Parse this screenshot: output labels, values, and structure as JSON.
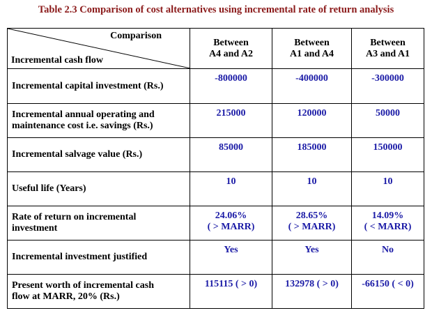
{
  "title": "Table 2.3 Comparison of cost alternatives using incremental rate of return analysis",
  "header": {
    "corner_top": "Comparison",
    "corner_bottom": "Incremental cash flow",
    "columns": [
      {
        "line1": "Between",
        "line2": "A4 and A2"
      },
      {
        "line1": "Between",
        "line2": "A1 and A4"
      },
      {
        "line1": "Between",
        "line2": "A3 and A1"
      }
    ]
  },
  "rows": [
    {
      "label_lines": [
        "Incremental capital investment (Rs.)"
      ],
      "cells": [
        [
          "-800000"
        ],
        [
          "-400000"
        ],
        [
          "-300000"
        ]
      ]
    },
    {
      "label_lines": [
        "Incremental annual operating and",
        "maintenance cost i.e. savings (Rs.)"
      ],
      "cells": [
        [
          "215000"
        ],
        [
          "120000"
        ],
        [
          "50000"
        ]
      ]
    },
    {
      "label_lines": [
        "Incremental salvage value (Rs.)"
      ],
      "cells": [
        [
          "85000"
        ],
        [
          "185000"
        ],
        [
          "150000"
        ]
      ]
    },
    {
      "label_lines": [
        "Useful life (Years)"
      ],
      "cells": [
        [
          "10"
        ],
        [
          "10"
        ],
        [
          "10"
        ]
      ]
    },
    {
      "label_lines": [
        "Rate of return on incremental",
        "investment"
      ],
      "cells": [
        [
          "24.06%",
          "( > MARR)"
        ],
        [
          "28.65%",
          "( > MARR)"
        ],
        [
          "14.09%",
          "( < MARR)"
        ]
      ]
    },
    {
      "label_lines": [
        "Incremental investment justified"
      ],
      "cells": [
        [
          "Yes"
        ],
        [
          "Yes"
        ],
        [
          "No"
        ]
      ]
    },
    {
      "label_lines": [
        "Present worth of incremental cash",
        "flow at MARR, 20% (Rs.)"
      ],
      "cells": [
        [
          "115115 ( > 0)"
        ],
        [
          "132978 ( > 0)"
        ],
        [
          "-66150 ( < 0)"
        ]
      ]
    }
  ]
}
